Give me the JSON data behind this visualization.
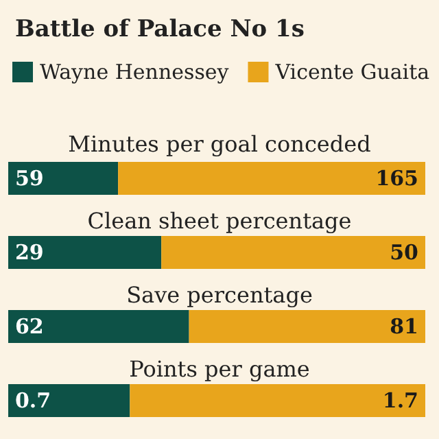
{
  "chart_data": [
    {
      "type": "bar",
      "title": "Battle of Palace No 1s",
      "subtitle": "Minutes per goal conceded",
      "orientation": "horizontal",
      "stacked": true,
      "categories": [
        null
      ],
      "series": [
        {
          "name": "Wayne Hennessey",
          "color": "#0d5247",
          "values": [
            59
          ]
        },
        {
          "name": "Vicente Guaita",
          "color": "#e8a51c",
          "values": [
            165
          ]
        }
      ],
      "data_labels": true,
      "legend": "top left",
      "tick_labels": false
    },
    {
      "type": "bar",
      "title": "Clean sheet percentage",
      "orientation": "horizontal",
      "stacked": true,
      "categories": [
        null
      ],
      "series": [
        {
          "color": "#0d5247",
          "values": [
            29
          ]
        },
        {
          "color": "#e8a51c",
          "values": [
            50
          ]
        }
      ],
      "data_labels": true,
      "tick_labels": false
    },
    {
      "type": "bar",
      "title": "Save percentage",
      "orientation": "horizontal",
      "stacked": true,
      "categories": [
        null
      ],
      "series": [
        {
          "color": "#0d5247",
          "values": [
            62
          ]
        },
        {
          "color": "#e8a51c",
          "values": [
            81
          ]
        }
      ],
      "data_labels": true,
      "tick_labels": false
    },
    {
      "type": "bar",
      "title": "Points per game",
      "orientation": "horizontal",
      "stacked": true,
      "categories": [
        null
      ],
      "series": [
        {
          "color": "#0d5247",
          "values": [
            0.7
          ]
        },
        {
          "color": "#e8a51c",
          "values": [
            1.7
          ]
        }
      ],
      "data_labels": true,
      "tick_labels": false
    }
  ]
}
